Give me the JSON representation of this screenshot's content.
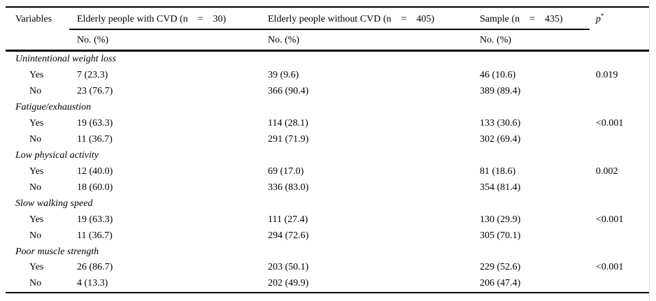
{
  "colors": {
    "background": "#ffffff",
    "rule": "#000000",
    "text": "#000000"
  },
  "table": {
    "header": {
      "variables": "Variables",
      "with_cvd": "Elderly people with CVD (n    =    30)",
      "without_cvd": "Elderly people without CVD (n    =    405)",
      "sample": "Sample (n    =    435)",
      "p_label": "p",
      "p_superscript": "*",
      "subheader": "No. (%)"
    },
    "sections": [
      {
        "title": "Unintentional weight loss",
        "rows": [
          {
            "label": "Yes",
            "with_cvd": "7 (23.3)",
            "without_cvd": "39 (9.6)",
            "sample": "46 (10.6)",
            "p": "0.019"
          },
          {
            "label": "No",
            "with_cvd": "23 (76.7)",
            "without_cvd": "366 (90.4)",
            "sample": "389 (89.4)",
            "p": ""
          }
        ]
      },
      {
        "title": "Fatigue/exhaustion",
        "rows": [
          {
            "label": "Yes",
            "with_cvd": "19 (63.3)",
            "without_cvd": "114 (28.1)",
            "sample": "133 (30.6)",
            "p": "<0.001"
          },
          {
            "label": "No",
            "with_cvd": "11 (36.7)",
            "without_cvd": "291 (71.9)",
            "sample": "302 (69.4)",
            "p": ""
          }
        ]
      },
      {
        "title": "Low physical activity",
        "rows": [
          {
            "label": "Yes",
            "with_cvd": "12 (40.0)",
            "without_cvd": "69 (17.0)",
            "sample": "81 (18.6)",
            "p": "0.002"
          },
          {
            "label": "No",
            "with_cvd": "18 (60.0)",
            "without_cvd": "336 (83.0)",
            "sample": "354 (81.4)",
            "p": ""
          }
        ]
      },
      {
        "title": "Slow walking speed",
        "rows": [
          {
            "label": "Yes",
            "with_cvd": "19 (63.3)",
            "without_cvd": "111 (27.4)",
            "sample": "130 (29.9)",
            "p": "<0.001"
          },
          {
            "label": "No",
            "with_cvd": "11 (36.7)",
            "without_cvd": "294 (72.6)",
            "sample": "305 (70.1)",
            "p": ""
          }
        ]
      },
      {
        "title": "Poor muscle strength",
        "rows": [
          {
            "label": "Yes",
            "with_cvd": "26 (86.7)",
            "without_cvd": "203 (50.1)",
            "sample": "229 (52.6)",
            "p": "<0.001"
          },
          {
            "label": "No",
            "with_cvd": "4 (13.3)",
            "without_cvd": "202 (49.9)",
            "sample": "206 (47.4)",
            "p": ""
          }
        ]
      }
    ]
  }
}
